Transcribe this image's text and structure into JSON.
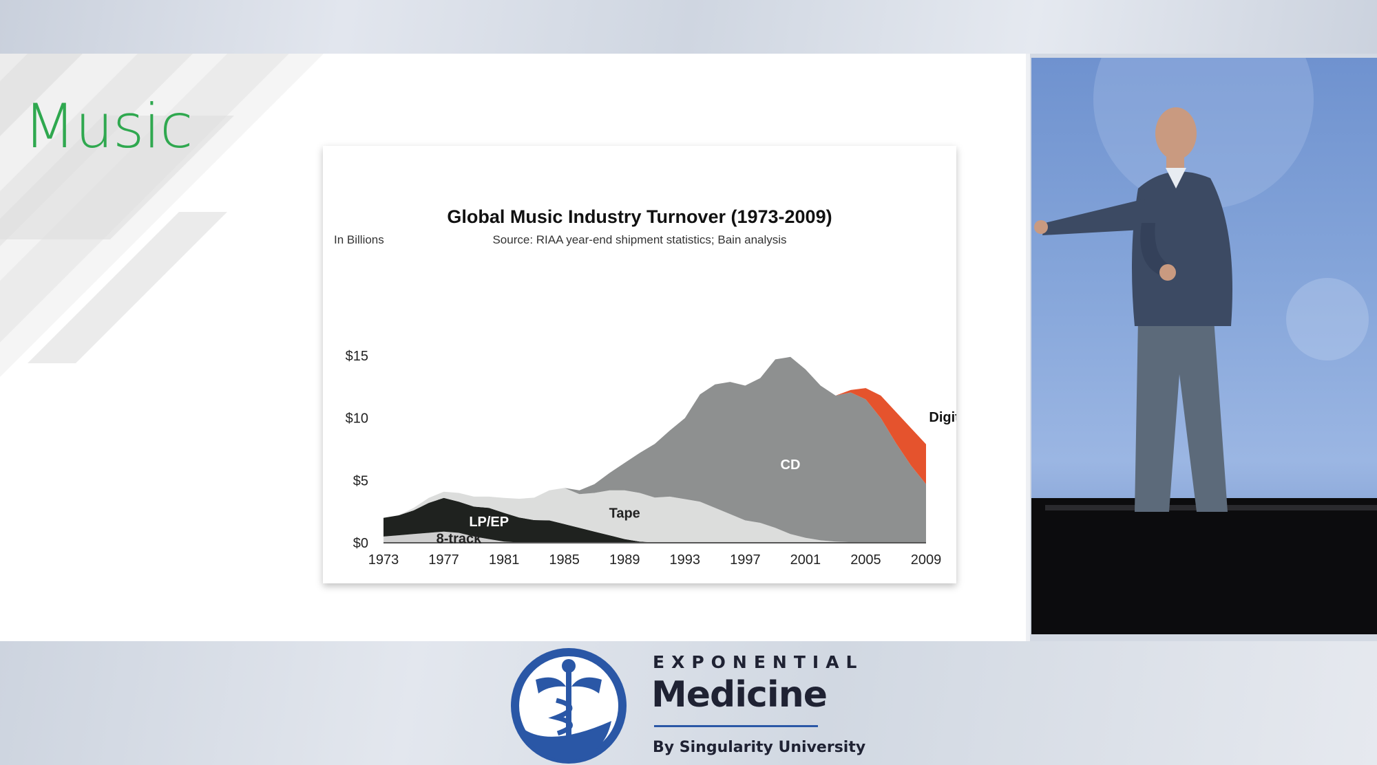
{
  "slide": {
    "title": "Music"
  },
  "brand": {
    "top": "EXPONENTIAL",
    "main": "Medicine",
    "sub": "By Singularity University"
  },
  "chart_data": {
    "type": "area",
    "stacked": true,
    "title": "Global Music Industry Turnover (1973-2009)",
    "subtitle": "Source: RIAA year-end shipment statistics; Bain analysis",
    "ylabel": "In Billions",
    "xlabel": "",
    "ylim": [
      0,
      15
    ],
    "yticks": [
      "$0",
      "$5",
      "$10",
      "$15"
    ],
    "xticks": [
      "1973",
      "1977",
      "1981",
      "1985",
      "1989",
      "1993",
      "1997",
      "2001",
      "2005",
      "2009"
    ],
    "x": [
      1973,
      1974,
      1975,
      1976,
      1977,
      1978,
      1979,
      1980,
      1981,
      1982,
      1983,
      1984,
      1985,
      1986,
      1987,
      1988,
      1989,
      1990,
      1991,
      1992,
      1993,
      1994,
      1995,
      1996,
      1997,
      1998,
      1999,
      2000,
      2001,
      2002,
      2003,
      2004,
      2005,
      2006,
      2007,
      2008,
      2009
    ],
    "series": [
      {
        "name": "8-track",
        "color": "#cfcfcf",
        "values": [
          0.5,
          0.6,
          0.7,
          0.8,
          0.9,
          0.8,
          0.5,
          0.3,
          0.1,
          0.03,
          0.02,
          0,
          0,
          0,
          0,
          0,
          0,
          0,
          0,
          0,
          0,
          0,
          0,
          0,
          0,
          0,
          0,
          0,
          0,
          0,
          0,
          0,
          0,
          0,
          0,
          0,
          0
        ]
      },
      {
        "name": "LP/EP",
        "color": "#1f221f",
        "values": [
          1.5,
          1.6,
          1.9,
          2.4,
          2.7,
          2.5,
          2.4,
          2.5,
          2.3,
          2.0,
          1.8,
          1.8,
          1.5,
          1.2,
          0.9,
          0.6,
          0.3,
          0.1,
          0.03,
          0,
          0,
          0,
          0,
          0,
          0,
          0,
          0,
          0,
          0,
          0,
          0,
          0,
          0,
          0,
          0,
          0,
          0
        ]
      },
      {
        "name": "Tape",
        "color": "#dcdddc",
        "values": [
          0,
          0,
          0.2,
          0.4,
          0.5,
          0.7,
          0.8,
          0.9,
          1.2,
          1.5,
          1.8,
          2.4,
          2.9,
          2.7,
          3.1,
          3.6,
          3.9,
          3.9,
          3.6,
          3.7,
          3.5,
          3.3,
          2.8,
          2.3,
          1.8,
          1.6,
          1.2,
          0.7,
          0.4,
          0.2,
          0.1,
          0.05,
          0,
          0,
          0,
          0,
          0
        ]
      },
      {
        "name": "CD",
        "color": "#8e9090",
        "values": [
          0,
          0,
          0,
          0,
          0,
          0,
          0,
          0,
          0,
          0,
          0,
          0,
          0,
          0.3,
          0.7,
          1.4,
          2.2,
          3.2,
          4.3,
          5.3,
          6.5,
          8.6,
          9.9,
          10.6,
          10.8,
          11.6,
          13.5,
          14.2,
          13.5,
          12.4,
          11.7,
          12.0,
          11.5,
          10.0,
          8.0,
          6.2,
          4.7
        ]
      },
      {
        "name": "Digital",
        "color": "#e5532d",
        "values": [
          0,
          0,
          0,
          0,
          0,
          0,
          0,
          0,
          0,
          0,
          0,
          0,
          0,
          0,
          0,
          0,
          0,
          0,
          0,
          0,
          0,
          0,
          0,
          0,
          0,
          0,
          0,
          0,
          0,
          0,
          0,
          0.2,
          0.9,
          1.8,
          2.5,
          3.0,
          3.2
        ]
      }
    ],
    "labels": [
      "LP/EP",
      "8-track",
      "Tape",
      "CD",
      "Digital"
    ]
  }
}
